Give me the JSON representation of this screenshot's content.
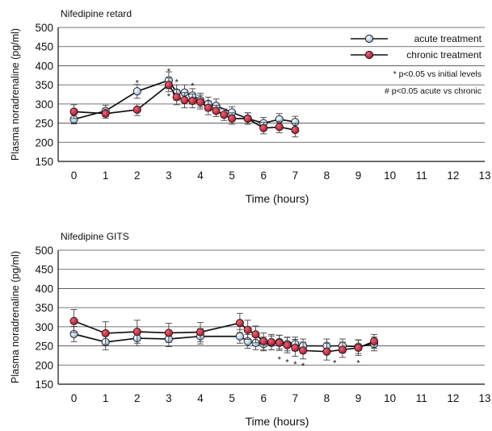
{
  "colors": {
    "acute_marker": "#8fb4da",
    "chronic_marker": "#b8102a",
    "line": "#111111",
    "error_bar": "#444444",
    "background": "#ffffff"
  },
  "chart_data": [
    {
      "type": "line",
      "title": "Nifedipine retard",
      "xlabel": "Time (hours)",
      "ylabel": "Plasma noradrenaline (pg/ml)",
      "xlim": [
        -0.5,
        13
      ],
      "ylim": [
        150,
        500
      ],
      "x_ticks": [
        0,
        1,
        2,
        3,
        4,
        5,
        6,
        7,
        8,
        9,
        10,
        11,
        12,
        13
      ],
      "y_ticks": [
        150,
        200,
        250,
        300,
        350,
        400,
        450,
        500
      ],
      "grid": "horizontal",
      "legend_position": "top-right",
      "series": [
        {
          "name": "acute treatment",
          "marker": "acute",
          "x": [
            0,
            1,
            2,
            3,
            3.25,
            3.5,
            3.75,
            4,
            4.25,
            4.5,
            5,
            5.5,
            6,
            6.5,
            7
          ],
          "y": [
            260,
            282,
            333,
            362,
            330,
            330,
            322,
            310,
            300,
            295,
            278,
            262,
            250,
            260,
            253
          ],
          "err": [
            12,
            15,
            18,
            22,
            20,
            20,
            18,
            18,
            18,
            18,
            15,
            15,
            15,
            15,
            15
          ]
        },
        {
          "name": "chronic treatment",
          "marker": "chronic",
          "x": [
            0,
            1,
            2,
            3,
            3.25,
            3.5,
            3.75,
            4,
            4.25,
            4.5,
            4.75,
            5,
            5.5,
            6,
            6.5,
            7
          ],
          "y": [
            280,
            275,
            285,
            350,
            318,
            310,
            308,
            305,
            290,
            282,
            272,
            262,
            262,
            237,
            240,
            232
          ],
          "err": [
            18,
            12,
            15,
            18,
            20,
            20,
            18,
            18,
            18,
            15,
            15,
            15,
            15,
            15,
            15,
            18
          ]
        }
      ],
      "annotations": [
        {
          "text": "*",
          "x": 2,
          "y": 360
        },
        {
          "text": "*",
          "x": 3,
          "y": 390
        },
        {
          "text": "*",
          "x": 3.25,
          "y": 362
        },
        {
          "text": "*",
          "x": 3.75,
          "y": 352
        },
        {
          "text": "*",
          "x": 3,
          "y": 325
        }
      ],
      "legend_notes": [
        "* p<0.05 vs initial levels",
        "# p<0.05 acute vs chronic"
      ]
    },
    {
      "type": "line",
      "title": "Nifedipine GITS",
      "xlabel": "Time (hours)",
      "ylabel": "Plasma noradrenaline (pg/ml)",
      "xlim": [
        -0.5,
        13
      ],
      "ylim": [
        150,
        500
      ],
      "x_ticks": [
        0,
        1,
        2,
        3,
        4,
        5,
        6,
        7,
        8,
        9,
        10,
        11,
        12,
        13
      ],
      "y_ticks": [
        150,
        200,
        250,
        300,
        350,
        400,
        450,
        500
      ],
      "grid": "horizontal",
      "series": [
        {
          "name": "acute treatment",
          "marker": "acute",
          "x": [
            0,
            1,
            2,
            3,
            4,
            5.25,
            5.5,
            5.75,
            6,
            6.25,
            6.5,
            6.75,
            7,
            7.25,
            8,
            8.5,
            9,
            9.5
          ],
          "y": [
            281,
            260,
            270,
            268,
            275,
            275,
            262,
            258,
            255,
            258,
            260,
            255,
            255,
            250,
            250,
            250,
            248,
            255
          ],
          "err": [
            20,
            20,
            20,
            20,
            20,
            18,
            18,
            18,
            18,
            18,
            18,
            18,
            18,
            18,
            18,
            18,
            18,
            18
          ]
        },
        {
          "name": "chronic treatment",
          "marker": "chronic",
          "x": [
            0,
            1,
            2,
            3,
            4,
            5.25,
            5.5,
            5.75,
            6,
            6.25,
            6.5,
            6.75,
            7,
            7.25,
            8,
            8.5,
            9,
            9.5
          ],
          "y": [
            315,
            283,
            287,
            284,
            286,
            310,
            292,
            280,
            262,
            260,
            258,
            252,
            245,
            238,
            235,
            240,
            245,
            262
          ],
          "err": [
            30,
            30,
            30,
            25,
            25,
            25,
            25,
            22,
            22,
            20,
            20,
            20,
            22,
            22,
            22,
            20,
            20,
            18
          ]
        }
      ],
      "annotations": [
        {
          "text": "*",
          "x": 6.5,
          "y": 220
        },
        {
          "text": "*",
          "x": 6.75,
          "y": 212
        },
        {
          "text": "*",
          "x": 7,
          "y": 207
        },
        {
          "text": "*",
          "x": 7.25,
          "y": 203
        },
        {
          "text": "*",
          "x": 8.25,
          "y": 210
        },
        {
          "text": "*",
          "x": 9,
          "y": 210
        }
      ]
    }
  ]
}
